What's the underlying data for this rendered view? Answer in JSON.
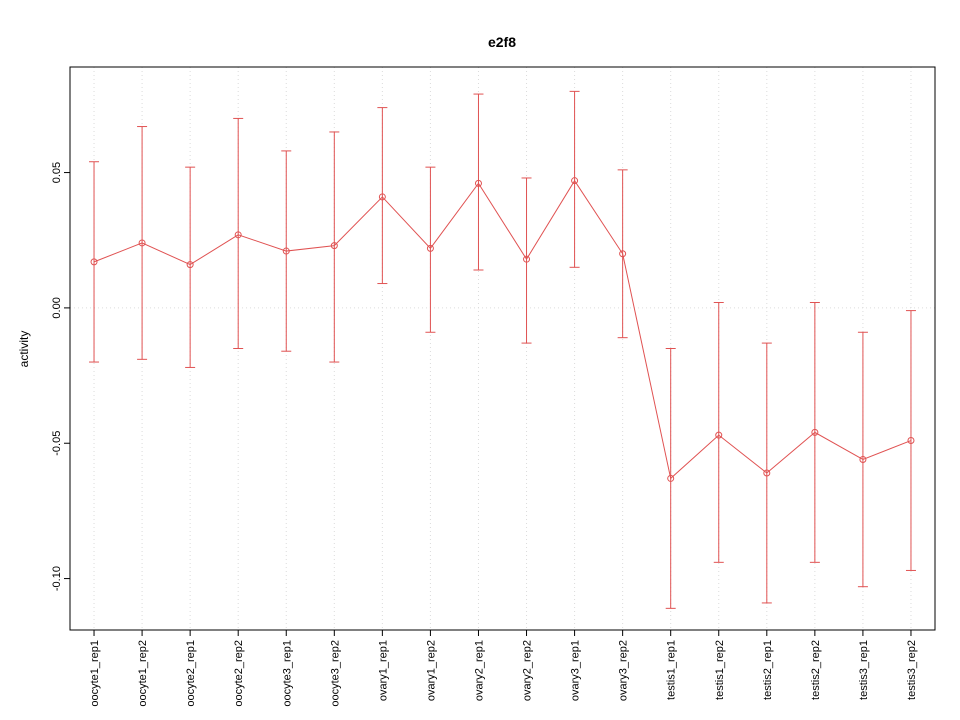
{
  "chart_data": {
    "type": "line",
    "title": "e2f8",
    "xlabel": "",
    "ylabel": "activity",
    "categories": [
      "oocyte1_rep1",
      "oocyte1_rep2",
      "oocyte2_rep1",
      "oocyte2_rep2",
      "oocyte3_rep1",
      "oocyte3_rep2",
      "ovary1_rep1",
      "ovary1_rep2",
      "ovary2_rep1",
      "ovary2_rep2",
      "ovary3_rep1",
      "ovary3_rep2",
      "testis1_rep1",
      "testis1_rep2",
      "testis2_rep1",
      "testis2_rep2",
      "testis3_rep1",
      "testis3_rep2"
    ],
    "series": [
      {
        "name": "activity",
        "values": [
          0.017,
          0.024,
          0.016,
          0.027,
          0.021,
          0.023,
          0.041,
          0.022,
          0.046,
          0.018,
          0.047,
          0.02,
          -0.063,
          -0.047,
          -0.061,
          -0.046,
          -0.056,
          -0.049
        ],
        "upper": [
          0.054,
          0.067,
          0.052,
          0.07,
          0.058,
          0.065,
          0.074,
          0.052,
          0.079,
          0.048,
          0.08,
          0.051,
          -0.015,
          0.002,
          -0.013,
          0.002,
          -0.009,
          -0.001
        ],
        "lower": [
          -0.02,
          -0.019,
          -0.022,
          -0.015,
          -0.016,
          -0.02,
          0.009,
          -0.009,
          0.014,
          -0.013,
          0.015,
          -0.011,
          -0.111,
          -0.094,
          -0.109,
          -0.094,
          -0.103,
          -0.097
        ]
      }
    ],
    "error_bars": true,
    "marker": "open-circle",
    "legend": "none",
    "ylim": [
      -0.119,
      0.089
    ],
    "yticks": [
      {
        "value": 0.05,
        "label": "0.05"
      },
      {
        "value": 0.0,
        "label": "0.00"
      },
      {
        "value": -0.05,
        "label": "-0.05"
      },
      {
        "value": -0.1,
        "label": "-0.10"
      }
    ],
    "grid": {
      "vertical_per_category": true,
      "horizontal_zero": true,
      "style": "dotted"
    },
    "colors": {
      "series": "#e05252",
      "grid": "#dcdcdc",
      "axis": "#000000",
      "background": "#ffffff"
    }
  }
}
